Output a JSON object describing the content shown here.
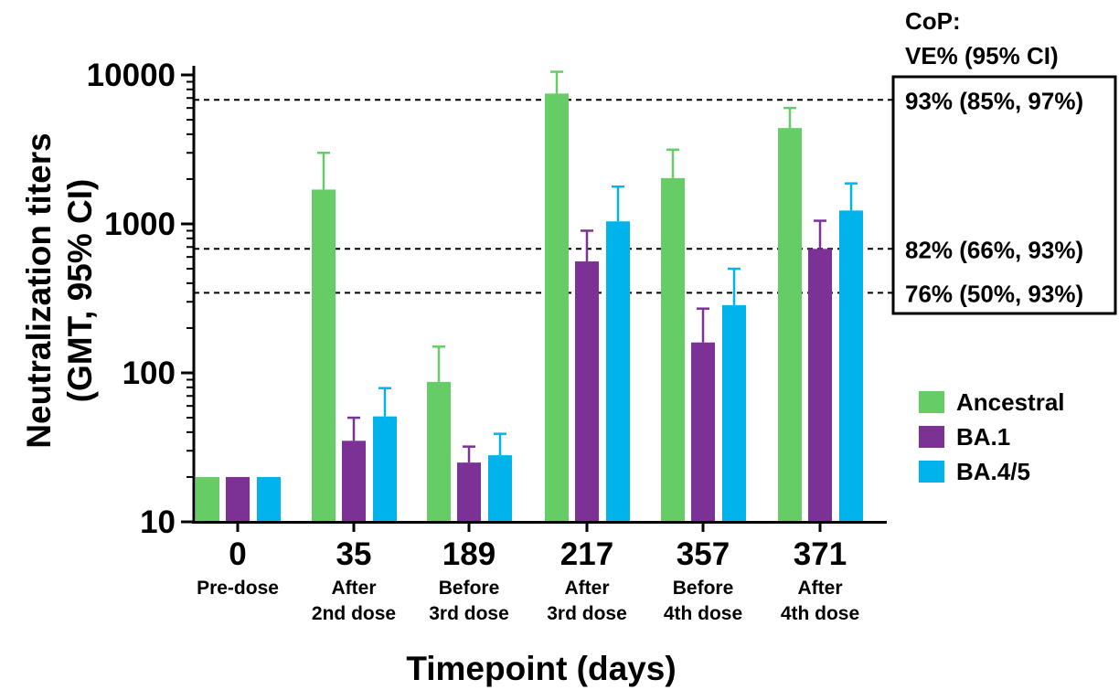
{
  "chart_data": {
    "type": "bar",
    "xlabel": "Timepoint (days)",
    "ylabel_line1": "Neutralization titers",
    "ylabel_line2": "(GMT, 95% CI)",
    "yscale": "log",
    "ylim": [
      10,
      10000
    ],
    "yticks": [
      10,
      100,
      1000,
      10000
    ],
    "ytick_labels": [
      "10",
      "100",
      "1000",
      "10000"
    ],
    "grid": false,
    "legend_position": "right",
    "categories": [
      "0",
      "35",
      "189",
      "217",
      "357",
      "371"
    ],
    "category_sublabels": [
      [
        "Pre-dose"
      ],
      [
        "After",
        "2nd dose"
      ],
      [
        "Before",
        "3rd dose"
      ],
      [
        "After",
        "3rd dose"
      ],
      [
        "Before",
        "4th dose"
      ],
      [
        "After",
        "4th dose"
      ]
    ],
    "series": [
      {
        "name": "Ancestral",
        "color": "#66cc66",
        "values": [
          20,
          1700,
          87,
          7500,
          2030,
          4400
        ],
        "ci_upper": [
          null,
          3000,
          150,
          10500,
          3150,
          6000
        ]
      },
      {
        "name": "BA.1",
        "color": "#7b3294",
        "values": [
          20,
          35,
          25,
          560,
          160,
          680
        ],
        "ci_upper": [
          null,
          50,
          32,
          900,
          270,
          1050
        ]
      },
      {
        "name": "BA.4/5",
        "color": "#00b4eb",
        "values": [
          20,
          51,
          28,
          1040,
          285,
          1230
        ],
        "ci_upper": [
          null,
          79,
          39,
          1780,
          500,
          1870
        ]
      }
    ],
    "reference_lines": [
      {
        "y": 6800,
        "label": "93% (85%, 97%)"
      },
      {
        "y": 680,
        "label": "82% (66%, 93%)"
      },
      {
        "y": 345,
        "label": "76% (50%, 93%)"
      }
    ],
    "annotation_title_line1": "CoP:",
    "annotation_title_line2": "VE% (95% CI)"
  }
}
